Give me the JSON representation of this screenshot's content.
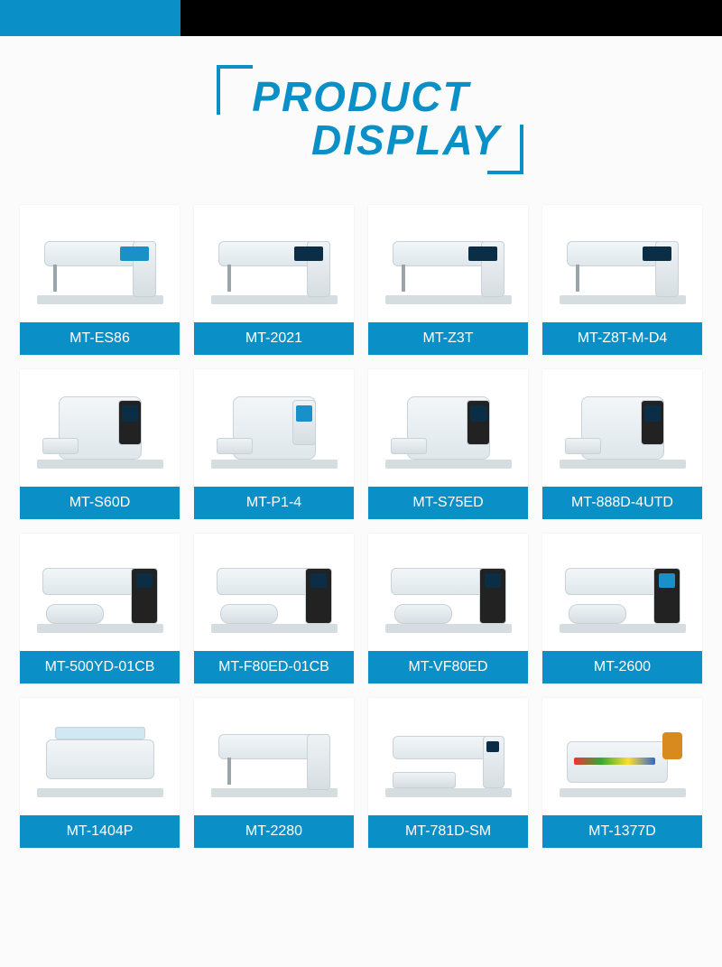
{
  "colors": {
    "accent": "#0b8fc7",
    "black": "#000000",
    "page_bg": "#fbfbfb",
    "card_bg": "#ffffff",
    "label_text": "#ffffff"
  },
  "title": {
    "line1": "PRODUCT",
    "line2": "DISPLAY",
    "font_size": 46,
    "color": "#0b8fc7"
  },
  "grid": {
    "columns": 4,
    "gap": 16,
    "card_image_height": 130,
    "label_bg": "#0b8fc7",
    "label_font_size": 16
  },
  "products": [
    {
      "model": "MT-ES86",
      "style": "lockstitch",
      "screen": "light"
    },
    {
      "model": "MT-2021",
      "style": "lockstitch",
      "screen": "dark"
    },
    {
      "model": "MT-Z3T",
      "style": "lockstitch",
      "screen": "dark"
    },
    {
      "model": "MT-Z8T-M-D4",
      "style": "lockstitch",
      "screen": "dark"
    },
    {
      "model": "MT-S60D",
      "style": "overlock",
      "screen": "dark"
    },
    {
      "model": "MT-P1-4",
      "style": "overlock",
      "screen": "light"
    },
    {
      "model": "MT-S75ED",
      "style": "overlock",
      "screen": "dark"
    },
    {
      "model": "MT-888D-4UTD",
      "style": "overlock",
      "screen": "dark"
    },
    {
      "model": "MT-500YD-01CB",
      "style": "interlock",
      "screen": "dark"
    },
    {
      "model": "MT-F80ED-01CB",
      "style": "interlock",
      "screen": "dark"
    },
    {
      "model": "MT-VF80ED",
      "style": "interlock",
      "screen": "dark"
    },
    {
      "model": "MT-2600",
      "style": "interlock",
      "screen": "light"
    },
    {
      "model": "MT-1404P",
      "style": "multineedle",
      "screen": "light"
    },
    {
      "model": "MT-2280",
      "style": "lockstitch",
      "screen": "none"
    },
    {
      "model": "MT-781D-SM",
      "style": "buttonhole",
      "screen": "dark"
    },
    {
      "model": "MT-1377D",
      "style": "special",
      "screen": "light"
    }
  ]
}
